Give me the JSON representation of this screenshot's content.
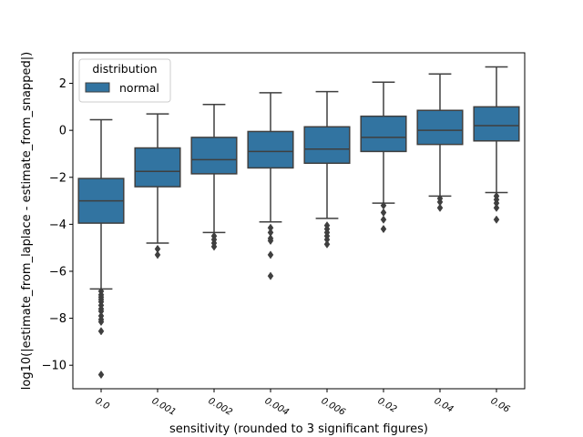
{
  "chart_data": {
    "type": "box",
    "xlabel": "sensitivity (rounded to 3 significant figures)",
    "ylabel": "log10(|estimate_from_laplace - estimate_from_snapped|)",
    "categories": [
      "0.0",
      "0.001",
      "0.002",
      "0.004",
      "0.006",
      "0.02",
      "0.04",
      "0.06"
    ],
    "ylim": [
      -11.0,
      3.3
    ],
    "yticks": [
      2,
      0,
      -2,
      -4,
      -6,
      -8,
      -10
    ],
    "ytick_labels": [
      "2",
      "0",
      "−2",
      "−4",
      "−6",
      "−8",
      "−10"
    ],
    "legend": {
      "title": "distribution",
      "placement": "top-left",
      "entries": [
        "normal"
      ]
    },
    "series": [
      {
        "name": "normal",
        "color": "#3274a1",
        "boxes": [
          {
            "whisker_low": -6.75,
            "q1": -3.95,
            "median": -3.0,
            "q3": -2.05,
            "whisker_high": 0.45,
            "outliers": [
              -6.85,
              -7.0,
              -7.1,
              -7.2,
              -7.3,
              -7.45,
              -7.6,
              -7.7,
              -7.9,
              -8.05,
              -8.15,
              -8.55,
              -10.4
            ]
          },
          {
            "whisker_low": -4.8,
            "q1": -2.4,
            "median": -1.75,
            "q3": -0.75,
            "whisker_high": 0.7,
            "outliers": [
              -5.05,
              -5.3
            ]
          },
          {
            "whisker_low": -4.35,
            "q1": -1.85,
            "median": -1.25,
            "q3": -0.3,
            "whisker_high": 1.1,
            "outliers": [
              -4.5,
              -4.65,
              -4.8,
              -4.95
            ]
          },
          {
            "whisker_low": -3.9,
            "q1": -1.6,
            "median": -0.9,
            "q3": -0.05,
            "whisker_high": 1.6,
            "outliers": [
              -4.15,
              -4.35,
              -4.6,
              -4.7,
              -5.3,
              -6.2
            ]
          },
          {
            "whisker_low": -3.75,
            "q1": -1.4,
            "median": -0.8,
            "q3": 0.15,
            "whisker_high": 1.65,
            "outliers": [
              -4.05,
              -4.2,
              -4.35,
              -4.5,
              -4.65,
              -4.85
            ]
          },
          {
            "whisker_low": -3.1,
            "q1": -0.9,
            "median": -0.3,
            "q3": 0.6,
            "whisker_high": 2.05,
            "outliers": [
              -3.2,
              -3.5,
              -3.8,
              -4.2
            ]
          },
          {
            "whisker_low": -2.8,
            "q1": -0.6,
            "median": 0.0,
            "q3": 0.85,
            "whisker_high": 2.4,
            "outliers": [
              -2.9,
              -3.05,
              -3.3
            ]
          },
          {
            "whisker_low": -2.65,
            "q1": -0.45,
            "median": 0.2,
            "q3": 1.0,
            "whisker_high": 2.7,
            "outliers": [
              -2.8,
              -2.95,
              -3.1,
              -3.3,
              -3.8
            ]
          }
        ]
      }
    ]
  }
}
